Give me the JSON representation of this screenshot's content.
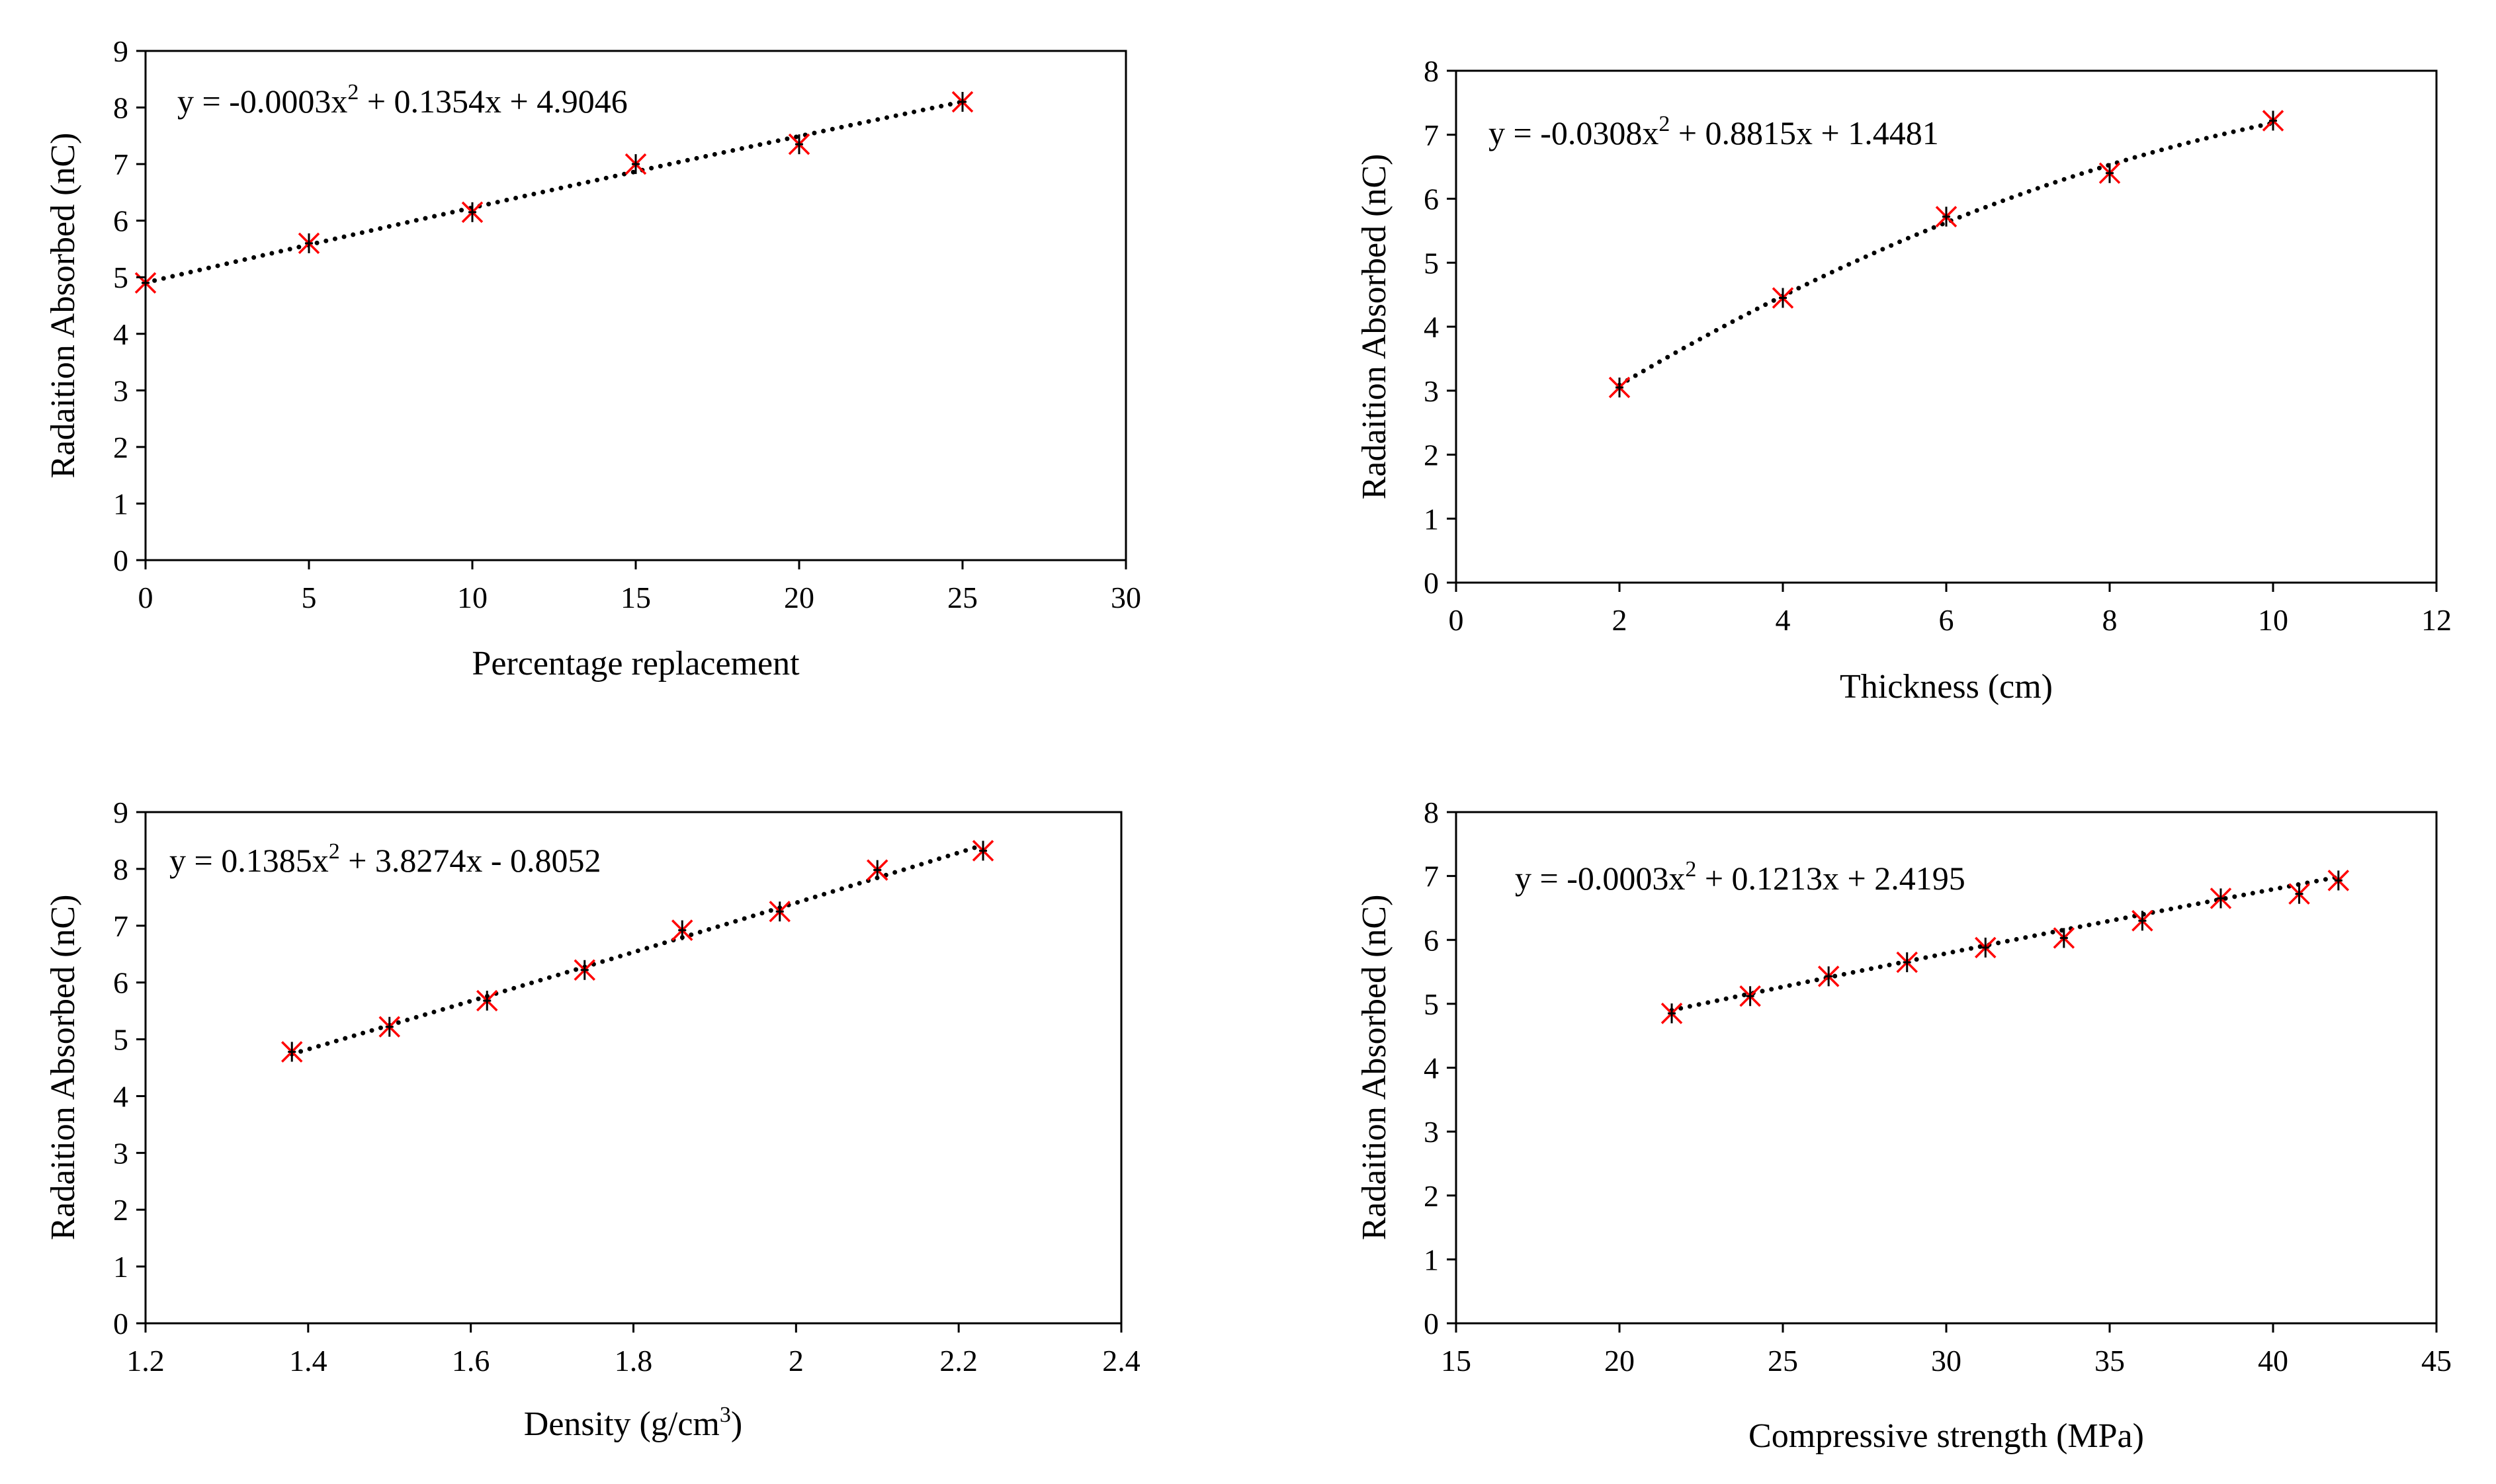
{
  "chart_data": [
    {
      "type": "scatter",
      "xlabel": "Percentage replacement",
      "ylabel": "Radaition Absorbed (nC)",
      "xlim": [
        0,
        30
      ],
      "ylim": [
        0,
        9
      ],
      "xticks": [
        "0",
        "5",
        "10",
        "15",
        "20",
        "25",
        "30"
      ],
      "yticks": [
        "0",
        "1",
        "2",
        "3",
        "4",
        "5",
        "6",
        "7",
        "8",
        "9"
      ],
      "x": [
        0,
        5,
        10,
        15,
        20,
        25
      ],
      "y": [
        4.9,
        5.6,
        6.15,
        7.0,
        7.35,
        8.1
      ],
      "trendline": {
        "type": "polynomial",
        "order": 2,
        "coefficients": [
          -0.0003,
          0.1354,
          4.9046
        ]
      },
      "equation": {
        "main": "y = -0.0003x",
        "sup": "2",
        "rest": " + 0.1354x + 4.9046"
      }
    },
    {
      "type": "scatter",
      "xlabel": "Thickness (cm)",
      "ylabel": "Radaition Absorbed (nC)",
      "xlim": [
        0,
        12
      ],
      "ylim": [
        0,
        8
      ],
      "xticks": [
        "0",
        "2",
        "4",
        "6",
        "8",
        "10",
        "12"
      ],
      "yticks": [
        "0",
        "1",
        "2",
        "3",
        "4",
        "5",
        "6",
        "7",
        "8"
      ],
      "x": [
        2,
        4,
        6,
        8,
        10
      ],
      "y": [
        3.05,
        4.45,
        5.72,
        6.4,
        7.22
      ],
      "trendline": {
        "type": "polynomial",
        "order": 2,
        "coefficients": [
          -0.0308,
          0.8815,
          1.4481
        ]
      },
      "equation": {
        "main": "y = -0.0308x",
        "sup": "2",
        "rest": " + 0.8815x + 1.4481"
      }
    },
    {
      "type": "scatter",
      "xlabel": "Density (g/cm",
      "xlabel_sup": "3",
      "xlabel_rest": ")",
      "ylabel": "Radaition Absorbed (nC)",
      "xlim": [
        1.2,
        2.4
      ],
      "ylim": [
        0,
        9
      ],
      "xticks": [
        "1.2",
        "1.4",
        "1.6",
        "1.8",
        "2",
        "2.2",
        "2.4"
      ],
      "yticks": [
        "0",
        "1",
        "2",
        "3",
        "4",
        "5",
        "6",
        "7",
        "8",
        "9"
      ],
      "x": [
        1.38,
        1.5,
        1.62,
        1.74,
        1.86,
        1.98,
        2.1,
        2.23
      ],
      "y": [
        4.78,
        5.22,
        5.68,
        6.22,
        6.92,
        7.25,
        7.98,
        8.32
      ],
      "trendline": {
        "type": "polynomial",
        "order": 2,
        "coefficients": [
          0.1385,
          3.8274,
          -0.8052
        ]
      },
      "equation": {
        "main": "y = 0.1385x",
        "sup": "2",
        "rest": " + 3.8274x - 0.8052"
      }
    },
    {
      "type": "scatter",
      "xlabel": "Compressive strength (MPa)",
      "ylabel": "Radaition Absorbed (nC)",
      "xlim": [
        15,
        45
      ],
      "ylim": [
        0,
        8
      ],
      "xticks": [
        "15",
        "20",
        "25",
        "30",
        "35",
        "40",
        "45"
      ],
      "yticks": [
        "0",
        "1",
        "2",
        "3",
        "4",
        "5",
        "6",
        "7",
        "8"
      ],
      "x": [
        21.6,
        24.0,
        26.4,
        28.8,
        31.2,
        33.6,
        36.0,
        38.4,
        40.8,
        42.0
      ],
      "y": [
        4.85,
        5.12,
        5.43,
        5.65,
        5.88,
        6.03,
        6.3,
        6.65,
        6.72,
        6.93
      ],
      "trendline": {
        "type": "polynomial",
        "order": 2,
        "coefficients": [
          -0.0003,
          0.1213,
          2.4195
        ]
      },
      "equation": {
        "main": "y = -0.0003x",
        "sup": "2",
        "rest": " + 0.1213x + 2.4195"
      }
    }
  ],
  "style": {
    "marker_color": "#ff0000",
    "marker_center_color": "#000000",
    "trendline_color": "#000000",
    "axis_color": "#000000"
  }
}
